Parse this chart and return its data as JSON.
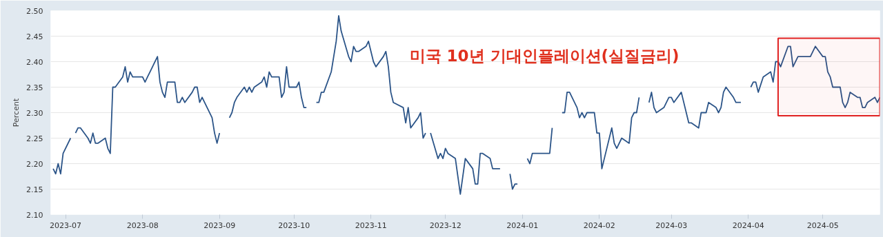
{
  "chart_data": {
    "type": "line",
    "ylabel": "Percent",
    "annotations": [
      "미국 10년 기대인플레이션(실질금리)"
    ],
    "x": [
      "2023-06-26",
      "2023-06-27",
      "2023-06-28",
      "2023-06-29",
      "2023-06-30",
      "2023-07-03",
      "2023-07-04",
      "2023-07-05",
      "2023-07-06",
      "2023-07-07",
      "2023-07-10",
      "2023-07-11",
      "2023-07-12",
      "2023-07-13",
      "2023-07-14",
      "2023-07-17",
      "2023-07-18",
      "2023-07-19",
      "2023-07-20",
      "2023-07-21",
      "2023-07-24",
      "2023-07-25",
      "2023-07-26",
      "2023-07-27",
      "2023-07-28",
      "2023-07-31",
      "2023-08-01",
      "2023-08-02",
      "2023-08-03",
      "2023-08-04",
      "2023-08-07",
      "2023-08-08",
      "2023-08-09",
      "2023-08-10",
      "2023-08-11",
      "2023-08-14",
      "2023-08-15",
      "2023-08-16",
      "2023-08-17",
      "2023-08-18",
      "2023-08-21",
      "2023-08-22",
      "2023-08-23",
      "2023-08-24",
      "2023-08-25",
      "2023-08-29",
      "2023-08-30",
      "2023-08-31",
      "2023-09-01",
      "2023-09-04",
      "2023-09-05",
      "2023-09-06",
      "2023-09-07",
      "2023-09-08",
      "2023-09-11",
      "2023-09-12",
      "2023-09-13",
      "2023-09-14",
      "2023-09-15",
      "2023-09-18",
      "2023-09-19",
      "2023-09-20",
      "2023-09-21",
      "2023-09-22",
      "2023-09-25",
      "2023-09-26",
      "2023-09-27",
      "2023-09-28",
      "2023-09-29",
      "2023-10-02",
      "2023-10-03",
      "2023-10-04",
      "2023-10-05",
      "2023-10-06",
      "2023-10-09",
      "2023-10-10",
      "2023-10-11",
      "2023-10-12",
      "2023-10-13",
      "2023-10-16",
      "2023-10-17",
      "2023-10-18",
      "2023-10-19",
      "2023-10-20",
      "2023-10-23",
      "2023-10-24",
      "2023-10-25",
      "2023-10-26",
      "2023-10-27",
      "2023-10-30",
      "2023-10-31",
      "2023-11-01",
      "2023-11-02",
      "2023-11-03",
      "2023-11-06",
      "2023-11-07",
      "2023-11-08",
      "2023-11-09",
      "2023-11-10",
      "2023-11-14",
      "2023-11-15",
      "2023-11-16",
      "2023-11-17",
      "2023-11-20",
      "2023-11-21",
      "2023-11-22",
      "2023-11-23",
      "2023-11-24",
      "2023-11-25",
      "2023-11-28",
      "2023-11-29",
      "2023-11-30",
      "2023-12-01",
      "2023-12-02",
      "2023-12-05",
      "2023-12-07",
      "2023-12-09",
      "2023-12-12",
      "2023-12-13",
      "2023-12-14",
      "2023-12-15",
      "2023-12-16",
      "2023-12-19",
      "2023-12-20",
      "2023-12-23",
      "2023-12-24",
      "2023-12-27",
      "2023-12-28",
      "2023-12-29",
      "2023-12-30",
      "2023-12-31",
      "2024-01-03",
      "2024-01-04",
      "2024-01-05",
      "2024-01-12",
      "2024-01-13",
      "2024-01-14",
      "2024-01-17",
      "2024-01-18",
      "2024-01-19",
      "2024-01-20",
      "2024-01-23",
      "2024-01-24",
      "2024-01-25",
      "2024-01-26",
      "2024-01-27",
      "2024-01-30",
      "2024-01-31",
      "2024-02-01",
      "2024-02-02",
      "2024-02-06",
      "2024-02-07",
      "2024-02-08",
      "2024-02-10",
      "2024-02-13",
      "2024-02-14",
      "2024-02-15",
      "2024-02-16",
      "2024-02-17",
      "2024-02-18",
      "2024-02-21",
      "2024-02-22",
      "2024-02-23",
      "2024-02-24",
      "2024-02-27",
      "2024-02-29",
      "2024-03-01",
      "2024-03-02",
      "2024-03-05",
      "2024-03-08",
      "2024-03-09",
      "2024-03-12",
      "2024-03-13",
      "2024-03-15",
      "2024-03-16",
      "2024-03-19",
      "2024-03-20",
      "2024-03-21",
      "2024-03-22",
      "2024-03-23",
      "2024-03-26",
      "2024-03-27",
      "2024-03-29",
      "2024-03-30",
      "2024-04-02",
      "2024-04-03",
      "2024-04-04",
      "2024-04-05",
      "2024-04-07",
      "2024-04-10",
      "2024-04-11",
      "2024-04-12",
      "2024-04-13",
      "2024-04-14",
      "2024-04-17",
      "2024-04-18",
      "2024-04-19",
      "2024-04-21",
      "2024-04-26",
      "2024-04-28",
      "2024-05-01",
      "2024-05-02",
      "2024-05-03",
      "2024-05-04",
      "2024-05-05",
      "2024-05-08",
      "2024-05-09",
      "2024-05-10",
      "2024-05-11",
      "2024-05-12",
      "2024-05-15",
      "2024-05-16",
      "2024-05-17",
      "2024-05-18",
      "2024-05-19",
      "2024-05-22",
      "2024-05-23",
      "2024-05-24"
    ],
    "series": [
      {
        "color": "#2b5488",
        "values": [
          2.19,
          2.18,
          2.2,
          2.18,
          2.22,
          2.25,
          null,
          2.26,
          2.27,
          2.27,
          2.25,
          2.24,
          2.26,
          2.24,
          2.24,
          2.25,
          2.23,
          2.22,
          2.35,
          2.35,
          2.37,
          2.39,
          2.36,
          2.38,
          2.37,
          2.37,
          2.37,
          2.36,
          2.37,
          2.38,
          2.41,
          2.36,
          2.34,
          2.33,
          2.36,
          2.36,
          2.32,
          2.32,
          2.33,
          2.32,
          2.34,
          2.35,
          2.35,
          2.32,
          2.33,
          2.29,
          2.26,
          2.24,
          2.26,
          null,
          2.29,
          2.3,
          2.32,
          2.33,
          2.35,
          2.34,
          2.35,
          2.34,
          2.35,
          2.36,
          2.37,
          2.35,
          2.38,
          2.37,
          2.37,
          2.33,
          2.34,
          2.39,
          2.35,
          2.35,
          2.36,
          2.33,
          2.31,
          2.31,
          null,
          2.32,
          2.32,
          2.34,
          2.34,
          2.38,
          2.41,
          2.44,
          2.49,
          2.46,
          2.41,
          2.4,
          2.43,
          2.42,
          2.42,
          2.43,
          2.44,
          2.42,
          2.4,
          2.39,
          2.41,
          2.42,
          2.39,
          2.34,
          2.32,
          2.31,
          2.28,
          2.31,
          2.27,
          2.29,
          2.3,
          2.25,
          2.26,
          null,
          2.26,
          2.21,
          2.22,
          2.21,
          2.23,
          2.22,
          2.21,
          2.14,
          2.21,
          2.19,
          2.16,
          2.16,
          2.22,
          2.22,
          2.21,
          2.19,
          2.19,
          null,
          2.18,
          2.15,
          2.16,
          2.16,
          null,
          2.21,
          2.2,
          2.22,
          2.22,
          2.27,
          null,
          2.3,
          2.3,
          2.34,
          2.34,
          2.31,
          2.29,
          2.3,
          2.29,
          2.3,
          2.3,
          2.26,
          2.26,
          2.19,
          2.27,
          2.24,
          2.23,
          2.25,
          2.24,
          2.29,
          2.3,
          2.3,
          2.33,
          null,
          2.32,
          2.34,
          2.31,
          2.3,
          2.31,
          2.33,
          2.33,
          2.32,
          2.34,
          2.28,
          2.28,
          2.27,
          2.3,
          2.3,
          2.32,
          2.31,
          2.3,
          2.31,
          2.34,
          2.35,
          2.33,
          2.32,
          2.32,
          null,
          2.35,
          2.36,
          2.36,
          2.34,
          2.37,
          2.38,
          2.36,
          2.4,
          2.4,
          2.39,
          2.43,
          2.43,
          2.39,
          2.41,
          2.41,
          2.43,
          2.41,
          2.41,
          2.38,
          2.37,
          2.35,
          2.35,
          2.32,
          2.31,
          2.32,
          2.34,
          2.33,
          2.33,
          2.31,
          2.31,
          2.32,
          2.33,
          2.32,
          2.33
        ]
      }
    ],
    "xlim": [
      "2023-06-25",
      "2024-05-24"
    ],
    "xticks": [
      "2023-07",
      "2023-08",
      "2023-09",
      "2023-10",
      "2023-11",
      "2023-12",
      "2024-01",
      "2024-02",
      "2024-03",
      "2024-04",
      "2024-05"
    ],
    "ylim": [
      2.1,
      2.5
    ],
    "yticks": [
      {
        "value": 2.1,
        "label": "2.10"
      },
      {
        "value": 2.15,
        "label": "2.15"
      },
      {
        "value": 2.2,
        "label": "2.20"
      },
      {
        "value": 2.25,
        "label": "2.25"
      },
      {
        "value": 2.3,
        "label": "2.30"
      },
      {
        "value": 2.35,
        "label": "2.35"
      },
      {
        "value": 2.4,
        "label": "2.40"
      },
      {
        "value": 2.45,
        "label": "2.45"
      },
      {
        "value": 2.5,
        "label": "2.50"
      }
    ],
    "bands": [
      {
        "axis": "x",
        "from": "2024-04-13",
        "to": "2024-05-24",
        "color": "#e02020"
      }
    ],
    "grid": "y",
    "marker": "none",
    "line_style": "solid"
  }
}
